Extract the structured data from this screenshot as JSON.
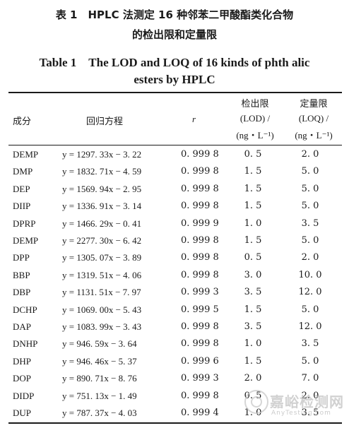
{
  "caption": {
    "cn_line1": "表 1　HPLC 法测定 16 种邻苯二甲酸酯类化合物",
    "cn_line2": "的检出限和定量限",
    "en_line1": "Table 1　The LOD and LOQ of 16 kinds of phth alic",
    "en_line2": "esters by HPLC"
  },
  "headers": {
    "component": "成分",
    "equation": "回归方程",
    "r": "r",
    "lod_line1": "检出限",
    "lod_line2": "(LOD) /",
    "lod_line3": "(ng・L⁻¹)",
    "loq_line1": "定量限",
    "loq_line2": "(LOQ) /",
    "loq_line3": "(ng・L⁻¹)"
  },
  "rows": [
    {
      "name": "DEMP",
      "eq": "y = 1297. 33x − 3. 22",
      "r": "0. 999 8",
      "lod": "0. 5",
      "loq": "2. 0"
    },
    {
      "name": "DMP",
      "eq": "y = 1832. 71x − 4. 59",
      "r": "0. 999 8",
      "lod": "1. 5",
      "loq": "5. 0"
    },
    {
      "name": "DEP",
      "eq": "y = 1569. 94x − 2. 95",
      "r": "0. 999 8",
      "lod": "1. 5",
      "loq": "5. 0"
    },
    {
      "name": "DIIP",
      "eq": "y = 1336. 91x − 3. 14",
      "r": "0. 999 8",
      "lod": "1. 5",
      "loq": "5. 0"
    },
    {
      "name": "DPRP",
      "eq": "y = 1466. 29x − 0. 41",
      "r": "0. 999 9",
      "lod": "1. 0",
      "loq": "3. 5"
    },
    {
      "name": "DEMP",
      "eq": "y = 2277. 30x − 6. 42",
      "r": "0. 999 8",
      "lod": "1. 5",
      "loq": "5. 0"
    },
    {
      "name": "DPP",
      "eq": "y = 1305. 07x − 3. 89",
      "r": "0. 999 8",
      "lod": "0. 5",
      "loq": "2. 0"
    },
    {
      "name": "BBP",
      "eq": "y = 1319. 51x − 4. 06",
      "r": "0. 999 8",
      "lod": "3. 0",
      "loq": "10. 0"
    },
    {
      "name": "DBP",
      "eq": "y = 1131. 51x − 7. 97",
      "r": "0. 999 3",
      "lod": "3. 5",
      "loq": "12. 0"
    },
    {
      "name": "DCHP",
      "eq": "y = 1069. 00x − 5. 43",
      "r": "0. 999 5",
      "lod": "1. 5",
      "loq": "5. 0"
    },
    {
      "name": "DAP",
      "eq": "y = 1083. 99x − 3. 43",
      "r": "0. 999 8",
      "lod": "3. 5",
      "loq": "12. 0"
    },
    {
      "name": "DNHP",
      "eq": "y = 946. 59x − 3. 64",
      "r": "0. 999 8",
      "lod": "1. 0",
      "loq": "3. 5"
    },
    {
      "name": "DHP",
      "eq": "y = 946. 46x − 5. 37",
      "r": "0. 999 6",
      "lod": "1. 5",
      "loq": "5. 0"
    },
    {
      "name": "DOP",
      "eq": "y = 890. 71x − 8. 76",
      "r": "0. 999 3",
      "lod": "2. 0",
      "loq": "7. 0"
    },
    {
      "name": "DIDP",
      "eq": "y = 751. 13x − 1. 49",
      "r": "0. 999 8",
      "lod": "0. 5",
      "loq": "2. 0"
    },
    {
      "name": "DUP",
      "eq": "y = 787. 37x − 4. 03",
      "r": "0. 999 4",
      "lod": "1. 0",
      "loq": "3. 5"
    }
  ],
  "watermark": {
    "text": "嘉峪检测网",
    "url": "AnyTesting.com"
  }
}
